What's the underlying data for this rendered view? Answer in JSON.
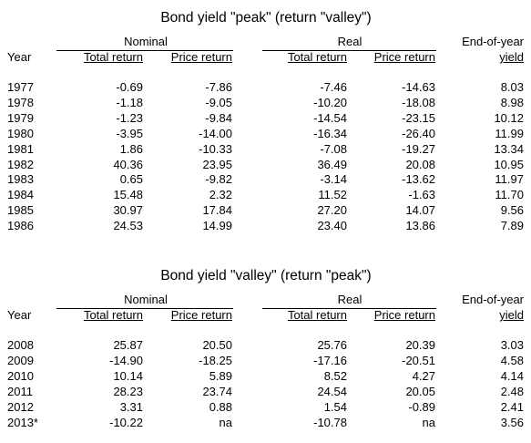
{
  "tables": [
    {
      "title": "Bond yield \"peak\" (return \"valley\")",
      "group_headers": [
        "Nominal",
        "Real",
        "End-of-year"
      ],
      "columns": [
        "Year",
        "Total return",
        "Price return",
        "Total return",
        "Price return",
        "yield"
      ],
      "rows": [
        [
          "1977",
          "-0.69",
          "-7.86",
          "-7.46",
          "-14.63",
          "8.03"
        ],
        [
          "1978",
          "-1.18",
          "-9.05",
          "-10.20",
          "-18.08",
          "8.98"
        ],
        [
          "1979",
          "-1.23",
          "-9.84",
          "-14.54",
          "-23.15",
          "10.12"
        ],
        [
          "1980",
          "-3.95",
          "-14.00",
          "-16.34",
          "-26.40",
          "11.99"
        ],
        [
          "1981",
          "1.86",
          "-10.33",
          "-7.08",
          "-19.27",
          "13.34"
        ],
        [
          "1982",
          "40.36",
          "23.95",
          "36.49",
          "20.08",
          "10.95"
        ],
        [
          "1983",
          "0.65",
          "-9.82",
          "-3.14",
          "-13.62",
          "11.97"
        ],
        [
          "1984",
          "15.48",
          "2.32",
          "11.52",
          "-1.63",
          "11.70"
        ],
        [
          "1985",
          "30.97",
          "17.84",
          "27.20",
          "14.07",
          "9.56"
        ],
        [
          "1986",
          "24.53",
          "14.99",
          "23.40",
          "13.86",
          "7.89"
        ]
      ]
    },
    {
      "title": "Bond yield \"valley\" (return \"peak\")",
      "group_headers": [
        "Nominal",
        "Real",
        "End-of-year"
      ],
      "columns": [
        "Year",
        "Total return",
        "Price return",
        "Total return",
        "Price return",
        "yield"
      ],
      "rows": [
        [
          "2008",
          "25.87",
          "20.50",
          "25.76",
          "20.39",
          "3.03"
        ],
        [
          "2009",
          "-14.90",
          "-18.25",
          "-17.16",
          "-20.51",
          "4.58"
        ],
        [
          "2010",
          "10.14",
          "5.89",
          "8.52",
          "4.27",
          "4.14"
        ],
        [
          "2011",
          "28.23",
          "23.74",
          "24.54",
          "20.05",
          "2.48"
        ],
        [
          "2012",
          "3.31",
          "0.88",
          "1.54",
          "-0.89",
          "2.41"
        ],
        [
          "2013*",
          "-10.22",
          "na",
          "-10.78",
          "na",
          "3.56"
        ]
      ]
    }
  ]
}
